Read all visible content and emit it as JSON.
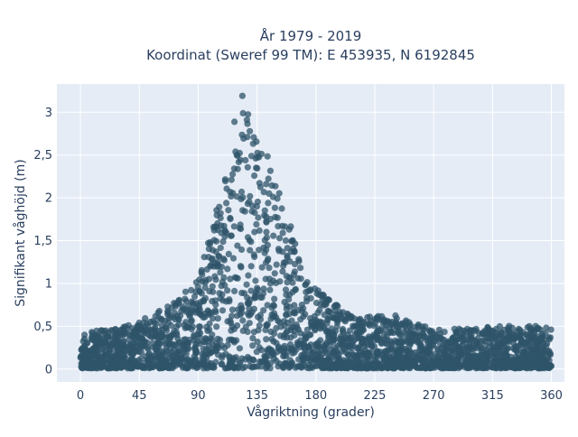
{
  "chart_data": {
    "type": "scatter",
    "title": "År 1979 - 2019",
    "subtitle": "Koordinat (Sweref 99 TM): E 453935, N 6192845",
    "xlabel": "Vågriktning (grader)",
    "ylabel": "Signifikant våghöjd (m)",
    "xlim": [
      -18,
      370
    ],
    "ylim": [
      -0.15,
      3.33
    ],
    "x_ticks": [
      0,
      45,
      90,
      135,
      180,
      225,
      270,
      315,
      360
    ],
    "x_tick_labels": [
      "0",
      "45",
      "90",
      "135",
      "180",
      "225",
      "270",
      "315",
      "360"
    ],
    "y_ticks": [
      0,
      0.5,
      1,
      1.5,
      2,
      2.5,
      3
    ],
    "y_tick_labels": [
      "0",
      "0,5",
      "1",
      "1,5",
      "2",
      "2,5",
      "3"
    ],
    "grid": true,
    "marker_color": "#2f5469",
    "plot_background": "#e5ecf6",
    "envelope": [
      {
        "x": 0,
        "ymax": 0.42
      },
      {
        "x": 20,
        "ymax": 0.45
      },
      {
        "x": 45,
        "ymax": 0.55
      },
      {
        "x": 70,
        "ymax": 0.75
      },
      {
        "x": 90,
        "ymax": 1.05
      },
      {
        "x": 100,
        "ymax": 1.6
      },
      {
        "x": 110,
        "ymax": 2.3
      },
      {
        "x": 115,
        "ymax": 2.8
      },
      {
        "x": 120,
        "ymax": 3.15
      },
      {
        "x": 125,
        "ymax": 3.2
      },
      {
        "x": 130,
        "ymax": 2.95
      },
      {
        "x": 140,
        "ymax": 2.6
      },
      {
        "x": 150,
        "ymax": 2.2
      },
      {
        "x": 160,
        "ymax": 1.7
      },
      {
        "x": 175,
        "ymax": 1.0
      },
      {
        "x": 190,
        "ymax": 0.8
      },
      {
        "x": 210,
        "ymax": 0.6
      },
      {
        "x": 240,
        "ymax": 0.62
      },
      {
        "x": 270,
        "ymax": 0.45
      },
      {
        "x": 300,
        "ymax": 0.47
      },
      {
        "x": 330,
        "ymax": 0.5
      },
      {
        "x": 360,
        "ymax": 0.5
      }
    ]
  }
}
